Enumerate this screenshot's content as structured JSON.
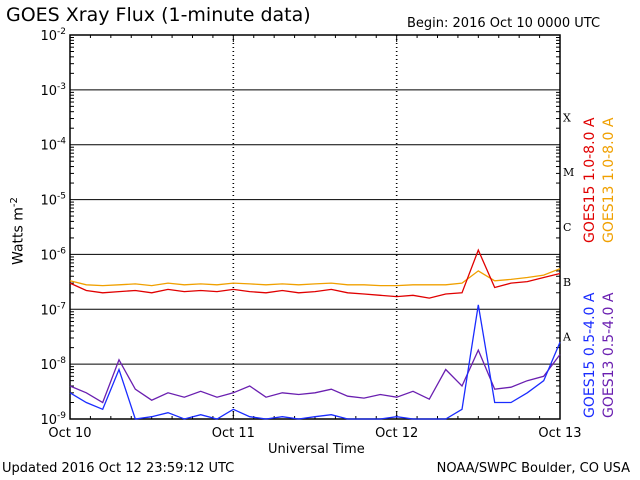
{
  "header": {
    "title": "GOES Xray Flux (1-minute data)",
    "begin": "Begin:  2016 Oct 10 0000 UTC"
  },
  "footer": {
    "updated": "Updated 2016 Oct 12 23:59:12 UTC",
    "credit": "NOAA/SWPC Boulder, CO USA"
  },
  "colors": {
    "goes15_long": "#e00000",
    "goes13_long": "#f0a000",
    "goes15_short": "#1a2cff",
    "goes13_short": "#6a1fb0"
  },
  "chart_data": {
    "type": "line",
    "title": "GOES Xray Flux (1-minute data)",
    "xlabel": "Universal Time",
    "ylabel": "Watts m",
    "ylabel_sup": "-2",
    "yscale": "log",
    "ylim": [
      1e-09,
      0.01
    ],
    "grid": true,
    "x_ticks": [
      "Oct 10",
      "Oct 11",
      "Oct 12",
      "Oct 13"
    ],
    "y_ticks": [
      {
        "base": "10",
        "exp": "-2"
      },
      {
        "base": "10",
        "exp": "-3"
      },
      {
        "base": "10",
        "exp": "-4"
      },
      {
        "base": "10",
        "exp": "-5"
      },
      {
        "base": "10",
        "exp": "-6"
      },
      {
        "base": "10",
        "exp": "-7"
      },
      {
        "base": "10",
        "exp": "-8"
      },
      {
        "base": "10",
        "exp": "-9"
      }
    ],
    "flare_classes": [
      "X",
      "M",
      "C",
      "B",
      "A"
    ],
    "legend": [
      "GOES15 1.0-8.0 A",
      "GOES13 1.0-8.0 A",
      "GOES15 0.5-4.0 A",
      "GOES13 0.5-4.0 A"
    ],
    "series": [
      {
        "name": "GOES15 1.0-8.0 A",
        "x": [
          0,
          0.1,
          0.2,
          0.3,
          0.4,
          0.5,
          0.6,
          0.7,
          0.8,
          0.9,
          1.0,
          1.1,
          1.2,
          1.3,
          1.4,
          1.5,
          1.6,
          1.7,
          1.8,
          1.9,
          2.0,
          2.1,
          2.2,
          2.3,
          2.4,
          2.5,
          2.6,
          2.7,
          2.8,
          2.9,
          3.0
        ],
        "values": [
          3e-07,
          2.2e-07,
          2e-07,
          2.1e-07,
          2.2e-07,
          2e-07,
          2.3e-07,
          2.1e-07,
          2.2e-07,
          2.1e-07,
          2.3e-07,
          2.1e-07,
          2e-07,
          2.2e-07,
          2e-07,
          2.1e-07,
          2.3e-07,
          2e-07,
          1.9e-07,
          1.8e-07,
          1.7e-07,
          1.8e-07,
          1.6e-07,
          1.9e-07,
          2e-07,
          1.2e-06,
          2.5e-07,
          3e-07,
          3.2e-07,
          3.8e-07,
          4.5e-07
        ]
      },
      {
        "name": "GOES13 1.0-8.0 A",
        "x": [
          0,
          0.1,
          0.2,
          0.3,
          0.4,
          0.5,
          0.6,
          0.7,
          0.8,
          0.9,
          1.0,
          1.1,
          1.2,
          1.3,
          1.4,
          1.5,
          1.6,
          1.7,
          1.8,
          1.9,
          2.0,
          2.1,
          2.2,
          2.3,
          2.4,
          2.5,
          2.6,
          2.7,
          2.8,
          2.9,
          3.0
        ],
        "values": [
          3.3e-07,
          2.8e-07,
          2.7e-07,
          2.8e-07,
          2.9e-07,
          2.7e-07,
          3e-07,
          2.8e-07,
          2.9e-07,
          2.8e-07,
          3e-07,
          2.9e-07,
          2.8e-07,
          2.9e-07,
          2.8e-07,
          2.9e-07,
          3e-07,
          2.8e-07,
          2.8e-07,
          2.7e-07,
          2.7e-07,
          2.8e-07,
          2.8e-07,
          2.8e-07,
          3e-07,
          5e-07,
          3.3e-07,
          3.5e-07,
          3.8e-07,
          4.2e-07,
          5.5e-07
        ]
      },
      {
        "name": "GOES15 0.5-4.0 A",
        "x": [
          0,
          0.1,
          0.2,
          0.3,
          0.4,
          0.5,
          0.6,
          0.7,
          0.8,
          0.9,
          1.0,
          1.1,
          1.2,
          1.3,
          1.4,
          1.5,
          1.6,
          1.7,
          1.8,
          1.9,
          2.0,
          2.1,
          2.2,
          2.3,
          2.4,
          2.5,
          2.6,
          2.7,
          2.8,
          2.9,
          3.0
        ],
        "values": [
          3e-09,
          2e-09,
          1.5e-09,
          8e-09,
          1e-09,
          1.1e-09,
          1.3e-09,
          1e-09,
          1.2e-09,
          1e-09,
          1.5e-09,
          1.1e-09,
          1e-09,
          1.1e-09,
          1e-09,
          1.1e-09,
          1.2e-09,
          1e-09,
          1e-09,
          1e-09,
          1.1e-09,
          1e-09,
          1e-09,
          1e-09,
          1.5e-09,
          1.2e-07,
          2e-09,
          2e-09,
          3e-09,
          5e-09,
          2.5e-08
        ]
      },
      {
        "name": "GOES13 0.5-4.0 A",
        "x": [
          0,
          0.1,
          0.2,
          0.3,
          0.4,
          0.5,
          0.6,
          0.7,
          0.8,
          0.9,
          1.0,
          1.1,
          1.2,
          1.3,
          1.4,
          1.5,
          1.6,
          1.7,
          1.8,
          1.9,
          2.0,
          2.1,
          2.2,
          2.3,
          2.4,
          2.5,
          2.6,
          2.7,
          2.8,
          2.9,
          3.0
        ],
        "values": [
          4e-09,
          3e-09,
          2e-09,
          1.2e-08,
          3.5e-09,
          2.2e-09,
          3e-09,
          2.5e-09,
          3.2e-09,
          2.5e-09,
          3e-09,
          4e-09,
          2.5e-09,
          3e-09,
          2.8e-09,
          3e-09,
          3.5e-09,
          2.6e-09,
          2.4e-09,
          2.8e-09,
          2.5e-09,
          3.2e-09,
          2.3e-09,
          8e-09,
          4e-09,
          1.8e-08,
          3.5e-09,
          3.8e-09,
          5e-09,
          6e-09,
          1.5e-08
        ]
      }
    ]
  }
}
